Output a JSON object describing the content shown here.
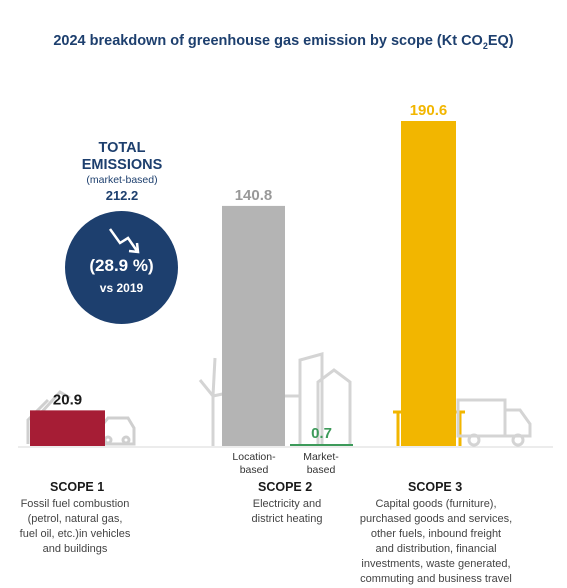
{
  "title": {
    "main": "2024 breakdown of greenhouse gas emission by scope (Kt CO",
    "sub": "2",
    "tail": "EQ)"
  },
  "total": {
    "label_line1": "TOTAL",
    "label_line2": "EMISSIONS",
    "basis": "(market-based)",
    "value": "212.2",
    "change": "(28.9 %)",
    "vs": "vs 2019"
  },
  "colors": {
    "scope1": "#a61d35",
    "location": "#b4b4b4",
    "market": "#3d9a5a",
    "scope3": "#f2b600",
    "navy": "#1d3f6e",
    "icon": "#cfcfcf"
  },
  "scopes": {
    "s1": {
      "head": "SCOPE 1",
      "desc": [
        "Fossil fuel combustion",
        "(petrol, natural gas,",
        "fuel oil, etc.)in vehicles",
        "and buildings"
      ]
    },
    "s2": {
      "head": "SCOPE 2",
      "desc": [
        "Electricity and",
        "district heating"
      ]
    },
    "s3": {
      "head": "SCOPE 3",
      "desc": [
        "Capital goods (furniture),",
        "purchased goods and services,",
        "other fuels, inbound freight",
        "and distribution, financial",
        "investments, waste generated,",
        "commuting and business travel"
      ]
    }
  },
  "chart_data": {
    "type": "bar",
    "title": "2024 breakdown of greenhouse gas emission by scope (Kt CO2EQ)",
    "categories": [
      "SCOPE 1",
      "Location-based",
      "Market-based",
      "SCOPE 3"
    ],
    "values": [
      20.9,
      140.8,
      0.7,
      190.6
    ],
    "labels": [
      "20.9",
      "140.8",
      "0.7",
      "190.6"
    ],
    "sub_labels": [
      "",
      "Location-\nbased",
      "Market-\nbased",
      ""
    ],
    "ylim": [
      0,
      190.6
    ],
    "grid": false,
    "legend": "none"
  }
}
